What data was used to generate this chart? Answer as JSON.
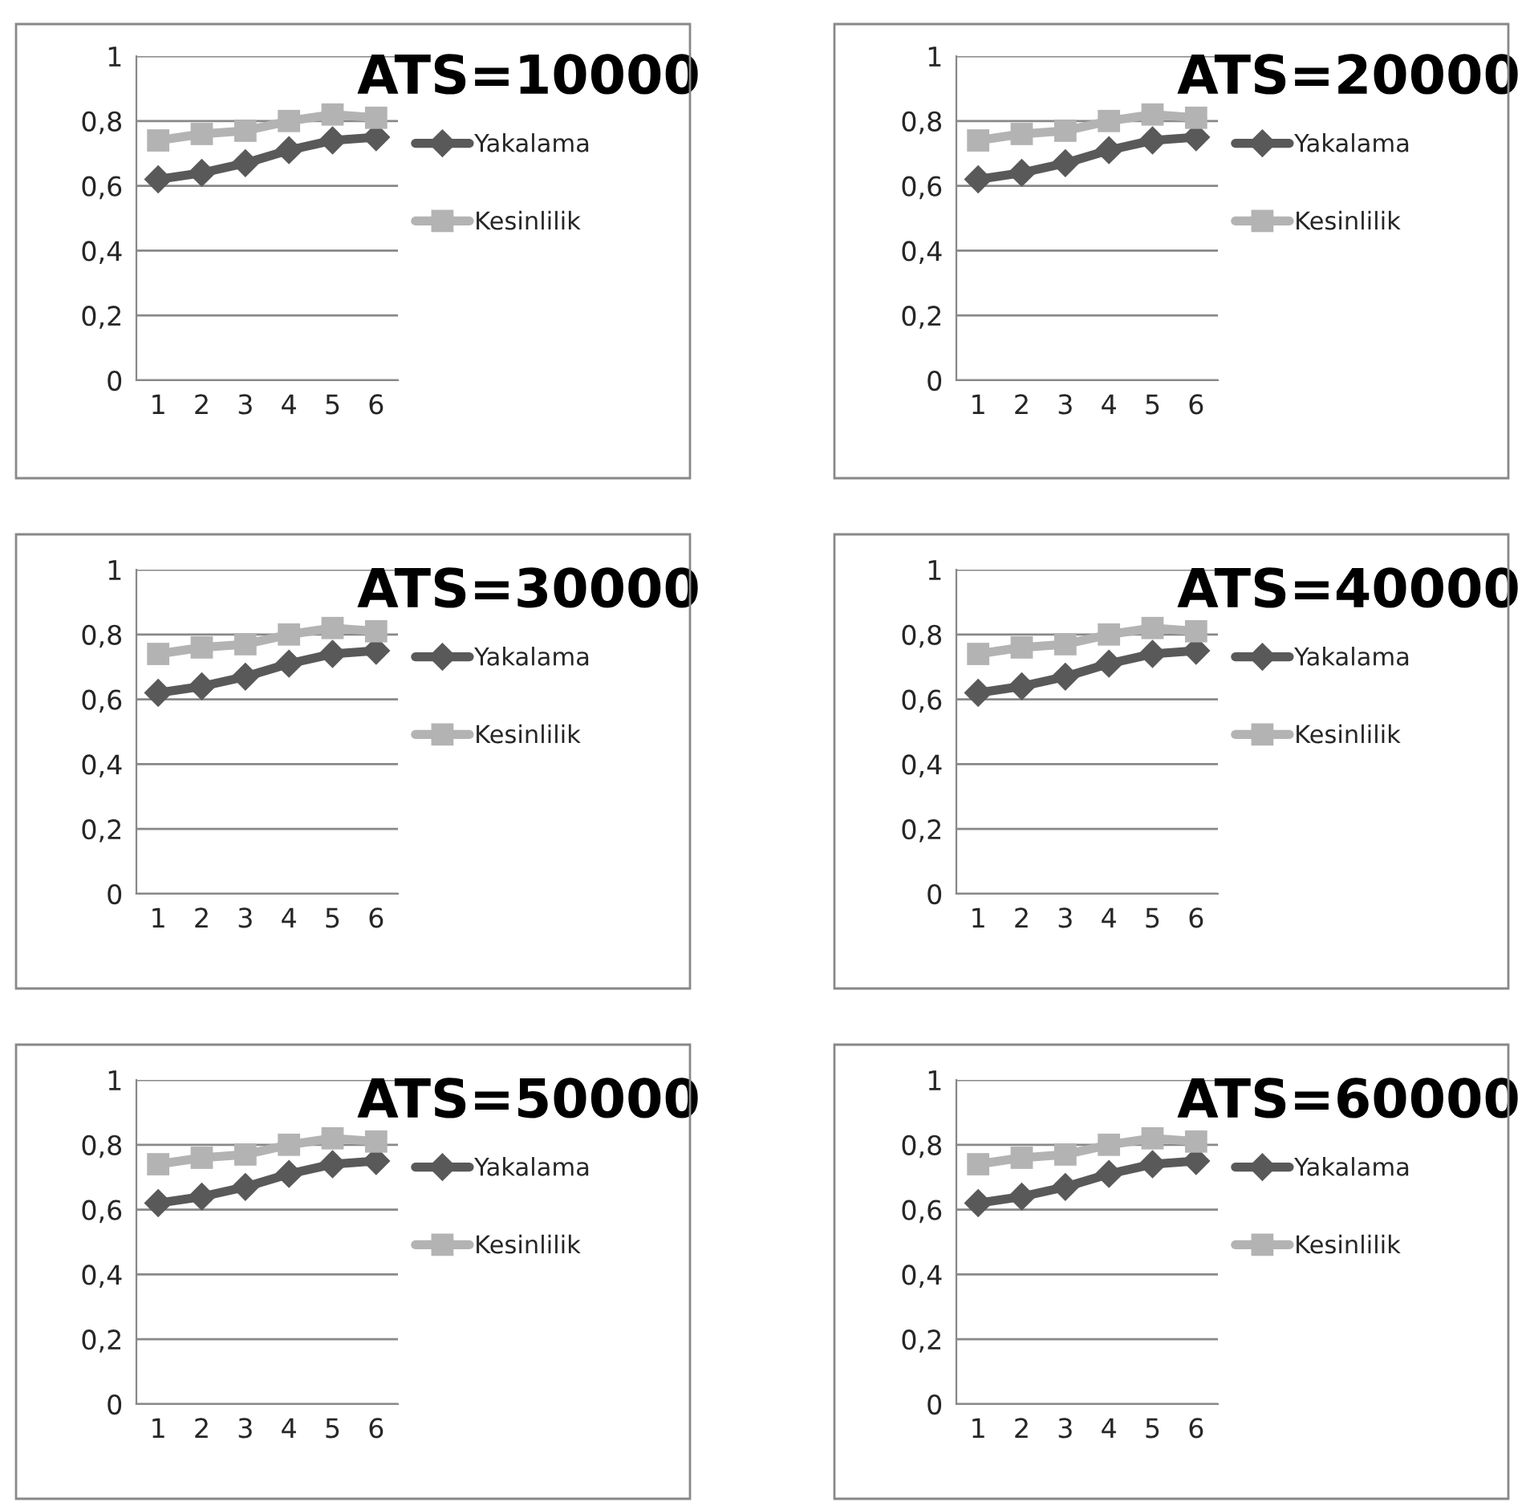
{
  "chart_data": [
    {
      "type": "line",
      "title": "ATS=10000",
      "categories": [
        "1",
        "2",
        "3",
        "4",
        "5",
        "6"
      ],
      "ylim": [
        0,
        1
      ],
      "yticks": [
        {
          "value": 0,
          "label": "0"
        },
        {
          "value": 0.2,
          "label": "0,2"
        },
        {
          "value": 0.4,
          "label": "0,4"
        },
        {
          "value": 0.6,
          "label": "0,6"
        },
        {
          "value": 0.8,
          "label": "0,8"
        },
        {
          "value": 1,
          "label": "1"
        }
      ],
      "grid": "y",
      "legend": "right",
      "series": [
        {
          "name": "Yakalama",
          "color": "#595959",
          "marker": "diamond",
          "values": [
            0.62,
            0.64,
            0.67,
            0.71,
            0.74,
            0.75
          ]
        },
        {
          "name": "Kesinlilik",
          "color": "#b3b3b3",
          "marker": "square",
          "values": [
            0.74,
            0.76,
            0.77,
            0.8,
            0.82,
            0.81
          ]
        }
      ]
    },
    {
      "type": "line",
      "title": "ATS=20000",
      "categories": [
        "1",
        "2",
        "3",
        "4",
        "5",
        "6"
      ],
      "ylim": [
        0,
        1
      ],
      "yticks": [
        {
          "value": 0,
          "label": "0"
        },
        {
          "value": 0.2,
          "label": "0,2"
        },
        {
          "value": 0.4,
          "label": "0,4"
        },
        {
          "value": 0.6,
          "label": "0,6"
        },
        {
          "value": 0.8,
          "label": "0,8"
        },
        {
          "value": 1,
          "label": "1"
        }
      ],
      "grid": "y",
      "legend": "right",
      "series": [
        {
          "name": "Yakalama",
          "color": "#595959",
          "marker": "diamond",
          "values": [
            0.62,
            0.64,
            0.67,
            0.71,
            0.74,
            0.75
          ]
        },
        {
          "name": "Kesinlilik",
          "color": "#b3b3b3",
          "marker": "square",
          "values": [
            0.74,
            0.76,
            0.77,
            0.8,
            0.82,
            0.81
          ]
        }
      ]
    },
    {
      "type": "line",
      "title": "ATS=30000",
      "categories": [
        "1",
        "2",
        "3",
        "4",
        "5",
        "6"
      ],
      "ylim": [
        0,
        1
      ],
      "yticks": [
        {
          "value": 0,
          "label": "0"
        },
        {
          "value": 0.2,
          "label": "0,2"
        },
        {
          "value": 0.4,
          "label": "0,4"
        },
        {
          "value": 0.6,
          "label": "0,6"
        },
        {
          "value": 0.8,
          "label": "0,8"
        },
        {
          "value": 1,
          "label": "1"
        }
      ],
      "grid": "y",
      "legend": "right",
      "series": [
        {
          "name": "Yakalama",
          "color": "#595959",
          "marker": "diamond",
          "values": [
            0.62,
            0.64,
            0.67,
            0.71,
            0.74,
            0.75
          ]
        },
        {
          "name": "Kesinlilik",
          "color": "#b3b3b3",
          "marker": "square",
          "values": [
            0.74,
            0.76,
            0.77,
            0.8,
            0.82,
            0.81
          ]
        }
      ]
    },
    {
      "type": "line",
      "title": "ATS=40000",
      "categories": [
        "1",
        "2",
        "3",
        "4",
        "5",
        "6"
      ],
      "ylim": [
        0,
        1
      ],
      "yticks": [
        {
          "value": 0,
          "label": "0"
        },
        {
          "value": 0.2,
          "label": "0,2"
        },
        {
          "value": 0.4,
          "label": "0,4"
        },
        {
          "value": 0.6,
          "label": "0,6"
        },
        {
          "value": 0.8,
          "label": "0,8"
        },
        {
          "value": 1,
          "label": "1"
        }
      ],
      "grid": "y",
      "legend": "right",
      "series": [
        {
          "name": "Yakalama",
          "color": "#595959",
          "marker": "diamond",
          "values": [
            0.62,
            0.64,
            0.67,
            0.71,
            0.74,
            0.75
          ]
        },
        {
          "name": "Kesinlilik",
          "color": "#b3b3b3",
          "marker": "square",
          "values": [
            0.74,
            0.76,
            0.77,
            0.8,
            0.82,
            0.81
          ]
        }
      ]
    },
    {
      "type": "line",
      "title": "ATS=50000",
      "categories": [
        "1",
        "2",
        "3",
        "4",
        "5",
        "6"
      ],
      "ylim": [
        0,
        1
      ],
      "yticks": [
        {
          "value": 0,
          "label": "0"
        },
        {
          "value": 0.2,
          "label": "0,2"
        },
        {
          "value": 0.4,
          "label": "0,4"
        },
        {
          "value": 0.6,
          "label": "0,6"
        },
        {
          "value": 0.8,
          "label": "0,8"
        },
        {
          "value": 1,
          "label": "1"
        }
      ],
      "grid": "y",
      "legend": "right",
      "series": [
        {
          "name": "Yakalama",
          "color": "#595959",
          "marker": "diamond",
          "values": [
            0.62,
            0.64,
            0.67,
            0.71,
            0.74,
            0.75
          ]
        },
        {
          "name": "Kesinlilik",
          "color": "#b3b3b3",
          "marker": "square",
          "values": [
            0.74,
            0.76,
            0.77,
            0.8,
            0.82,
            0.81
          ]
        }
      ]
    },
    {
      "type": "line",
      "title": "ATS=60000",
      "categories": [
        "1",
        "2",
        "3",
        "4",
        "5",
        "6"
      ],
      "ylim": [
        0,
        1
      ],
      "yticks": [
        {
          "value": 0,
          "label": "0"
        },
        {
          "value": 0.2,
          "label": "0,2"
        },
        {
          "value": 0.4,
          "label": "0,4"
        },
        {
          "value": 0.6,
          "label": "0,6"
        },
        {
          "value": 0.8,
          "label": "0,8"
        },
        {
          "value": 1,
          "label": "1"
        }
      ],
      "grid": "y",
      "legend": "right",
      "series": [
        {
          "name": "Yakalama",
          "color": "#595959",
          "marker": "diamond",
          "values": [
            0.62,
            0.64,
            0.67,
            0.71,
            0.74,
            0.75
          ]
        },
        {
          "name": "Kesinlilik",
          "color": "#b3b3b3",
          "marker": "square",
          "values": [
            0.74,
            0.76,
            0.77,
            0.8,
            0.82,
            0.81
          ]
        }
      ]
    }
  ]
}
